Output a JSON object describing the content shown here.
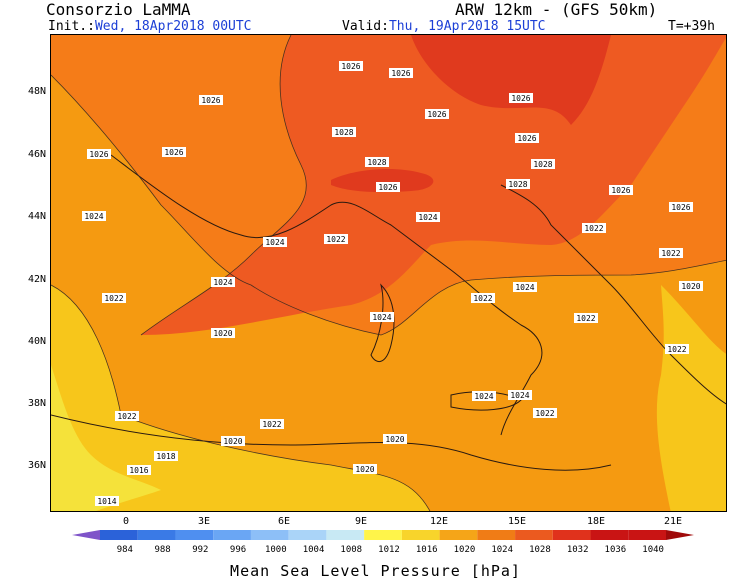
{
  "header": {
    "title": "Consorzio LaMMA",
    "model": "ARW 12km - (GFS 50km)",
    "init_label": "Init.:",
    "init_value": "Wed, 18Apr2018 00UTC",
    "valid_label": "Valid:",
    "valid_value": "Thu, 19Apr2018 15UTC",
    "lead_time": "T=+39h"
  },
  "map": {
    "lat_labels": [
      "48N",
      "46N",
      "44N",
      "42N",
      "40N",
      "38N",
      "36N"
    ],
    "lon_labels": [
      "0",
      "3E",
      "6E",
      "9E",
      "12E",
      "15E",
      "18E",
      "21E"
    ],
    "isobar_labels": [
      "1026",
      "1026",
      "1026",
      "1026",
      "1026",
      "1028",
      "1026",
      "1028",
      "1028",
      "1026",
      "1026",
      "1026",
      "1026",
      "1028",
      "1026",
      "1024",
      "1024",
      "1022",
      "1024",
      "1022",
      "1022",
      "1020",
      "1022",
      "1024",
      "1022",
      "1024",
      "1024",
      "1020",
      "1022",
      "1022",
      "1022",
      "1020",
      "1020",
      "1018",
      "1016",
      "1014",
      "1024",
      "1024",
      "1022",
      "1020",
      "1022"
    ],
    "colors": {
      "sea_land_1022": "#f59a11",
      "orange_1024": "#f57c18",
      "dark_1026": "#ee5a22",
      "red_1028": "#e03a1e",
      "yellow_1018": "#f7c61b",
      "pale_1016": "#f5e23a"
    }
  },
  "colorbar": {
    "values": [
      "984",
      "988",
      "992",
      "996",
      "1000",
      "1004",
      "1008",
      "1012",
      "1016",
      "1020",
      "1024",
      "1028",
      "1032",
      "1036",
      "1040"
    ],
    "colors": [
      "#7f54c9",
      "#2b62d9",
      "#3a7ae6",
      "#4f8ff0",
      "#6aa6f4",
      "#8dbff7",
      "#aad4f8",
      "#c8e9f4",
      "#fff44a",
      "#f8d42b",
      "#f5a518",
      "#f07c16",
      "#eb5a1f",
      "#e0321c",
      "#c91414",
      "#a00a0a"
    ],
    "label": "Mean Sea Level Pressure [hPa]"
  }
}
